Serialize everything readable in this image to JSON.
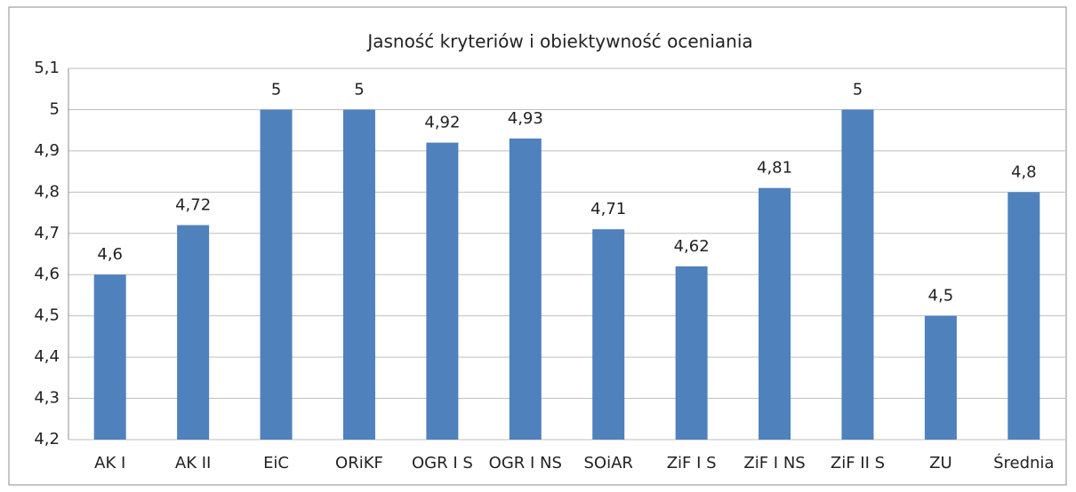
{
  "chart_data": {
    "type": "bar",
    "title": "Jasność kryteriów i obiektywność oceniania",
    "categories": [
      "AK I",
      "AK II",
      "EiC",
      "ORiKF",
      "OGR I S",
      "OGR I NS",
      "SOiAR",
      "ZiF I S",
      "ZiF I NS",
      "ZiF II S",
      "ZU",
      "Średnia"
    ],
    "values": [
      4.6,
      4.72,
      5,
      5,
      4.92,
      4.93,
      4.71,
      4.62,
      4.81,
      5,
      4.5,
      4.8
    ],
    "value_labels": [
      "4,6",
      "4,72",
      "5",
      "5",
      "4,92",
      "4,93",
      "4,71",
      "4,62",
      "4,81",
      "5",
      "4,5",
      "4,8"
    ],
    "color": "#4f81bd",
    "ylim": [
      4.2,
      5.1
    ],
    "yticks": [
      {
        "value": 4.2,
        "label": "4,2"
      },
      {
        "value": 4.3,
        "label": "4,3"
      },
      {
        "value": 4.4,
        "label": "4,4"
      },
      {
        "value": 4.5,
        "label": "4,5"
      },
      {
        "value": 4.6,
        "label": "4,6"
      },
      {
        "value": 4.7,
        "label": "4,7"
      },
      {
        "value": 4.8,
        "label": "4,8"
      },
      {
        "value": 4.9,
        "label": "4,9"
      },
      5,
      {
        "value": 5.1,
        "label": "5,1"
      }
    ],
    "grid": true
  }
}
